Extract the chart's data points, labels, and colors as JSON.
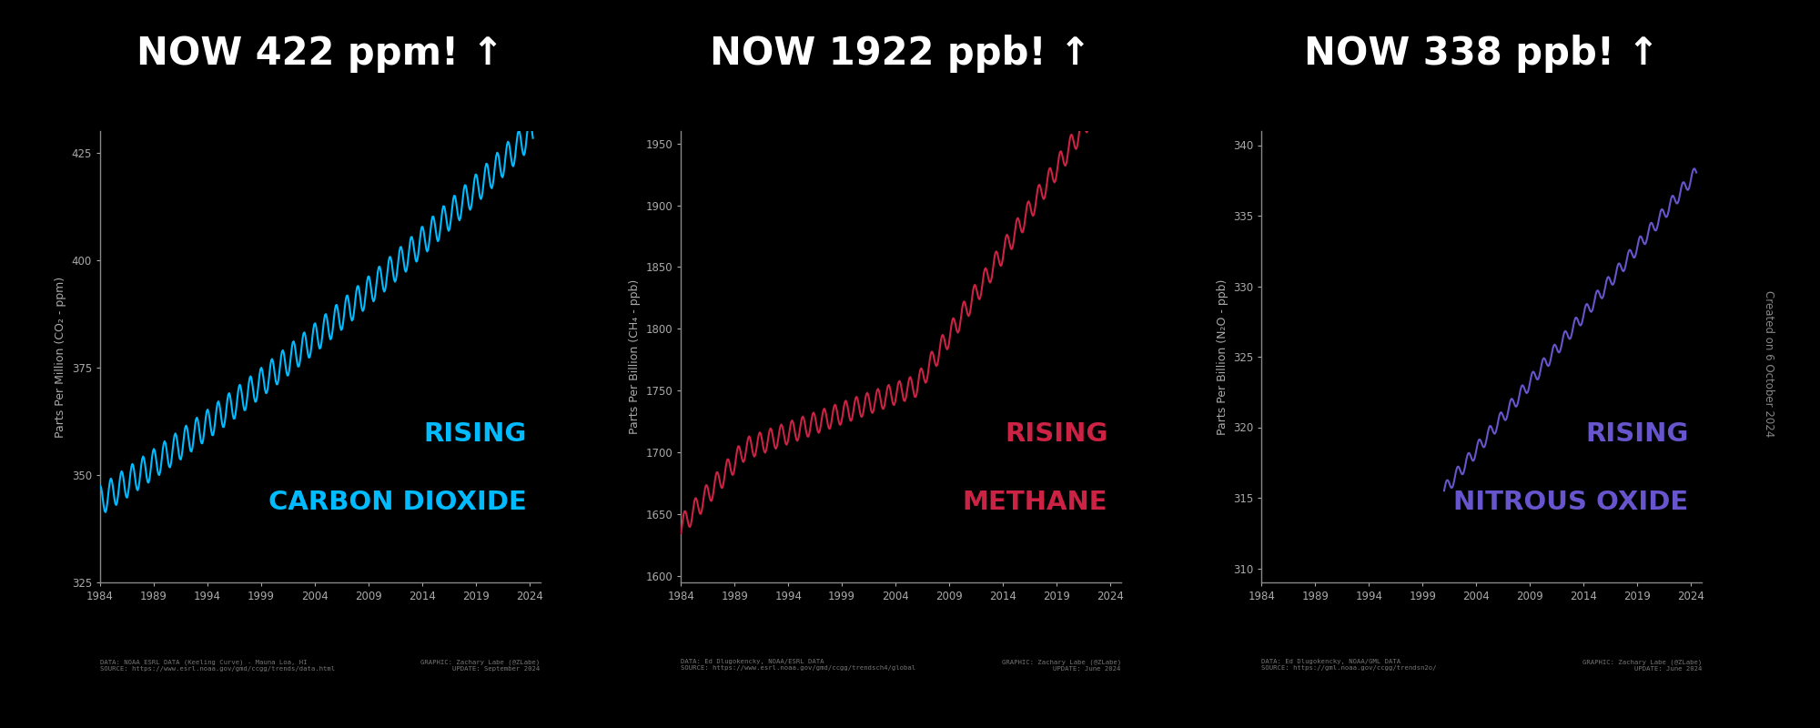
{
  "background_color": "#000000",
  "text_color": "#ffffff",
  "tick_color": "#aaaaaa",
  "spine_color": "#888888",
  "co2": {
    "title": "NOW 422 ppm! ↑",
    "ylabel": "Parts Per Million (CO₂ - ppm)",
    "color": "#00bbff",
    "label1": "RISING",
    "label2": "CARBON DIOXIDE",
    "label_color": "#00bbff",
    "ylim": [
      325,
      430
    ],
    "yticks": [
      325,
      350,
      375,
      400,
      425
    ],
    "footnote_left": "DATA: NOAA ESRL DATA (Keeling Curve) - Mauna Loa, HI\nSOURCE: https://www.esrl.noaa.gov/gmd/ccgg/trends/data.html",
    "footnote_right": "GRAPHIC: Zachary Labe (@ZLabe)\nUPDATE: September 2024"
  },
  "ch4": {
    "title": "NOW 1922 ppb! ↑",
    "ylabel": "Parts Per Billion (CH₄ - ppb)",
    "color": "#cc2244",
    "label1": "RISING",
    "label2": "METHANE",
    "label_color": "#cc2244",
    "ylim": [
      1595,
      1960
    ],
    "yticks": [
      1600,
      1650,
      1700,
      1750,
      1800,
      1850,
      1900,
      1950
    ],
    "footnote_left": "DATA: Ed Dlugokencky, NOAA/ESRL DATA\nSOURCE: https://www.esrl.noaa.gov/gmd/ccgg/trendsch4/global",
    "footnote_right": "GRAPHIC: Zachary Labe (@ZLabe)\nUPDATE: June 2024"
  },
  "n2o": {
    "title": "NOW 338 ppb! ↑",
    "ylabel": "Parts Per Billion (N₂O - ppb)",
    "color": "#6655cc",
    "label1": "RISING",
    "label2": "NITROUS OXIDE",
    "label_color": "#6655cc",
    "ylim": [
      309,
      341
    ],
    "yticks": [
      310,
      315,
      320,
      325,
      330,
      335,
      340
    ],
    "footnote_left": "DATA: Ed Dlugokencky, NOAA/GML DATA\nSOURCE: https://gml.noaa.gov/ccgg/trendsn2o/",
    "footnote_right": "GRAPHIC: Zachary Labe (@ZLabe)\nUPDATE: June 2024"
  },
  "xtick_years": [
    1984,
    1989,
    1994,
    1999,
    2004,
    2009,
    2014,
    2019,
    2024
  ],
  "created_text": "Created on 6 October 2024"
}
